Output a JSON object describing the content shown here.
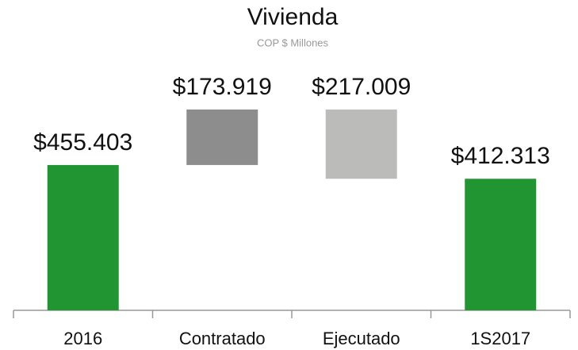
{
  "chart_data": {
    "type": "waterfall",
    "title": "Vivienda",
    "subtitle": "COP $ Millones",
    "categories": [
      "2016",
      "Contratado",
      "Ejecutado",
      "1S2017"
    ],
    "values": [
      455403,
      173919,
      -217009,
      412313
    ],
    "value_labels": [
      "$455.403",
      "$173.919",
      "$217.009",
      "$412.313"
    ],
    "measures": [
      "absolute",
      "relative",
      "relative",
      "total"
    ],
    "colors": [
      "#229533",
      "#8e8d8d",
      "#bbbbba",
      "#229533"
    ]
  }
}
